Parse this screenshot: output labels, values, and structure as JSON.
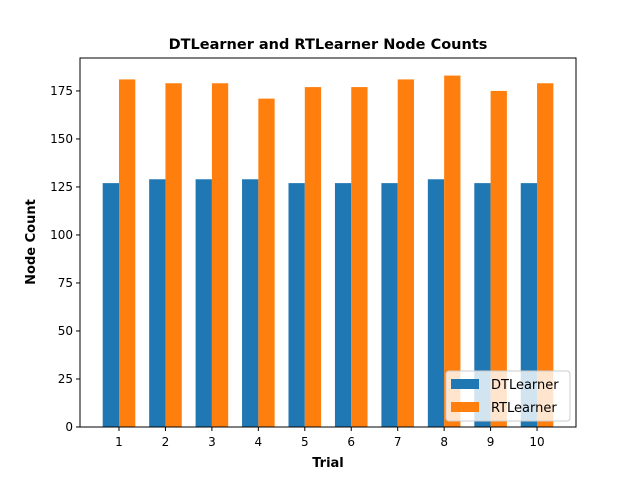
{
  "chart_data": {
    "type": "bar",
    "title": "DTLearner and RTLearner Node Counts",
    "xlabel": "Trial",
    "ylabel": "Node Count",
    "categories": [
      "1",
      "2",
      "3",
      "4",
      "5",
      "6",
      "7",
      "8",
      "9",
      "10"
    ],
    "series": [
      {
        "name": "DTLearner",
        "color": "#1f77b4",
        "values": [
          127,
          129,
          129,
          129,
          127,
          127,
          127,
          129,
          127,
          127
        ]
      },
      {
        "name": "RTLearner",
        "color": "#ff7f0e",
        "values": [
          181,
          179,
          179,
          171,
          177,
          177,
          181,
          183,
          175,
          179
        ]
      }
    ],
    "ylim": [
      0,
      192.15
    ],
    "yticks": [
      0,
      25,
      50,
      75,
      100,
      125,
      150,
      175
    ],
    "grid": false,
    "legend_position": "lower-right"
  }
}
